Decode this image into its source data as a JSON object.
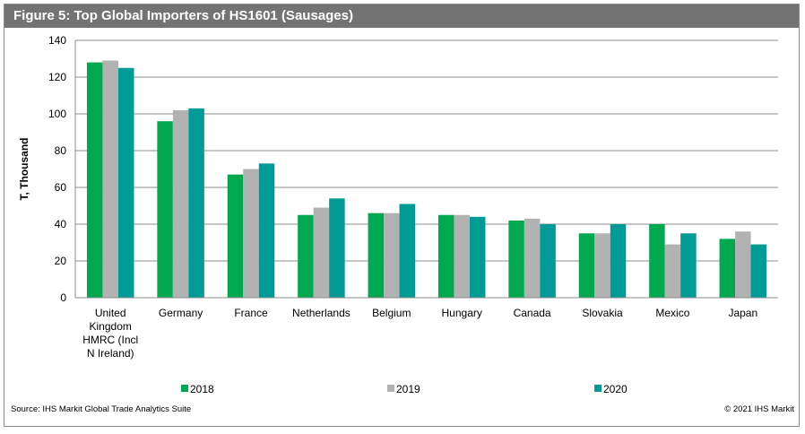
{
  "figure": {
    "title": "Figure 5: Top Global Importers of HS1601 (Sausages)",
    "source": "Source: IHS Markit Global Trade Analytics Suite",
    "copyright": "© 2021 IHS Markit"
  },
  "chart_data": {
    "type": "bar",
    "title": "Figure 5: Top Global Importers of HS1601 (Sausages)",
    "xlabel": "",
    "ylabel": "T, Thousand",
    "ylim": [
      0,
      140
    ],
    "yticks": [
      0,
      20,
      40,
      60,
      80,
      100,
      120,
      140
    ],
    "grid": true,
    "legend_position": "bottom",
    "categories": [
      [
        "United",
        "Kingdom",
        "HMRC (Incl",
        "N Ireland)"
      ],
      [
        "Germany"
      ],
      [
        "France"
      ],
      [
        "Netherlands"
      ],
      [
        "Belgium"
      ],
      [
        "Hungary"
      ],
      [
        "Canada"
      ],
      [
        "Slovakia"
      ],
      [
        "Mexico"
      ],
      [
        "Japan"
      ]
    ],
    "series": [
      {
        "name": "2018",
        "color": "#00a94f",
        "values": [
          128,
          96,
          67,
          45,
          46,
          45,
          42,
          35,
          40,
          32
        ]
      },
      {
        "name": "2019",
        "color": "#b2b2b2",
        "values": [
          129,
          102,
          70,
          49,
          46,
          45,
          43,
          35,
          29,
          36
        ]
      },
      {
        "name": "2020",
        "color": "#009b95",
        "values": [
          125,
          103,
          73,
          54,
          51,
          44,
          40,
          40,
          35,
          29
        ]
      }
    ]
  }
}
